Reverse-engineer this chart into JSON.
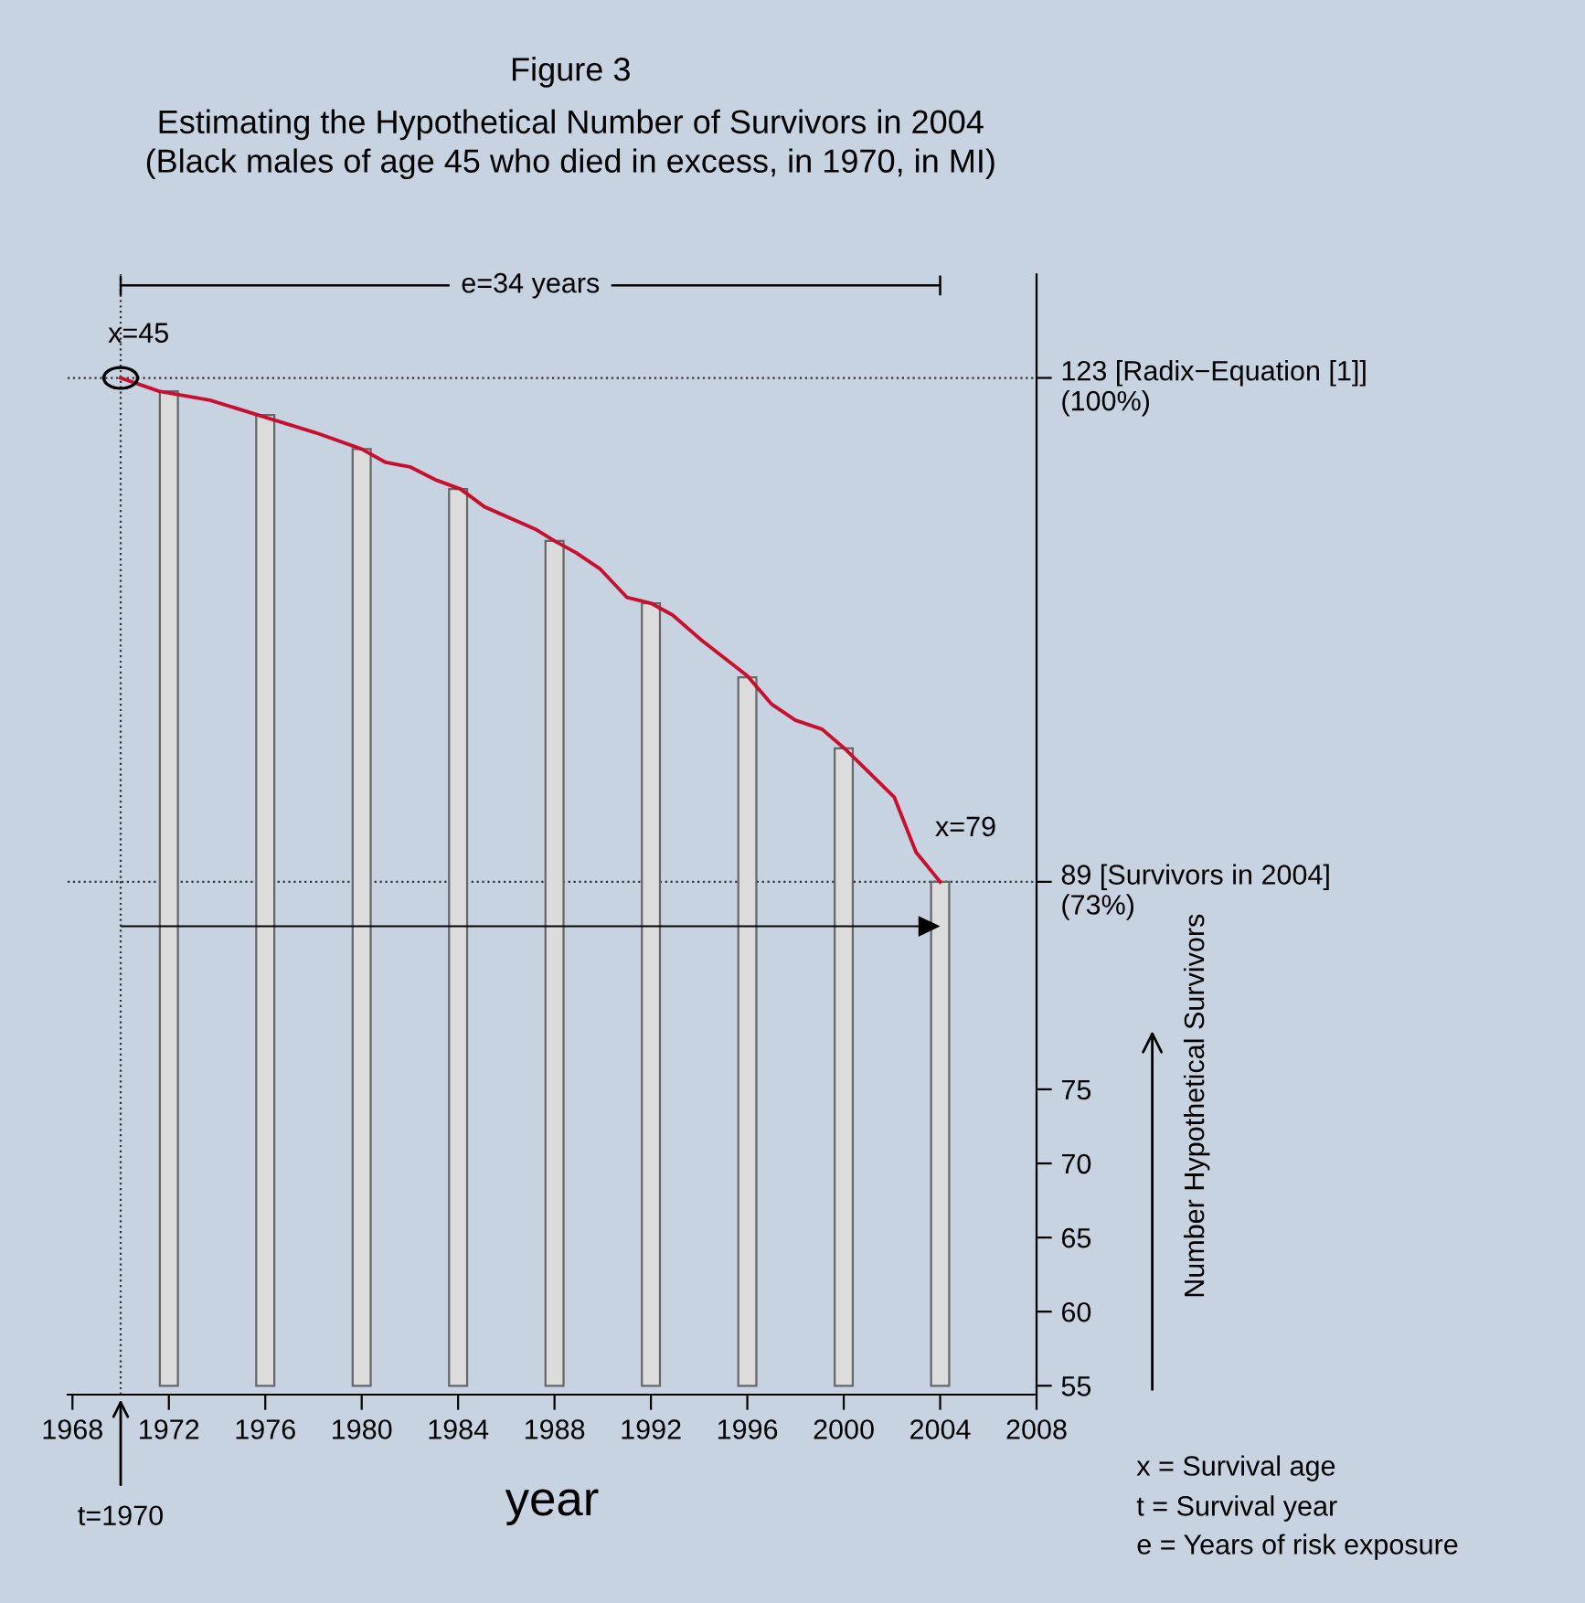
{
  "chart_data": {
    "type": "bar",
    "title": "Figure 3",
    "subtitle": "Estimating the Hypothetical Number of Survivors in 2004\n(Black males of age 45 who died in excess, in 1970, in MI)",
    "xlabel": "year",
    "ylabel": "Number Hypothetical Survivors",
    "series": [
      {
        "color": "#dcdcdc",
        "x": [
          1972,
          1976,
          1980,
          1984,
          1988,
          1992,
          1996,
          2000,
          2004
        ],
        "base": [
          55,
          55,
          55,
          55,
          55,
          55,
          55,
          55,
          55
        ],
        "values": [
          67.1,
          65.5,
          63.2,
          60.5,
          57.0,
          52.8,
          47.8,
          43.0,
          34
        ]
      },
      {
        "type": "line",
        "color": "#c8102e",
        "x": [
          1970,
          1971.6,
          1973.7,
          1975.7,
          1978.1,
          1980,
          1981,
          1982,
          1983.1,
          1984.1,
          1985.1,
          1987.2,
          1988,
          1988.9,
          1989.9,
          1991,
          1992,
          1992.9,
          1994.1,
          1996,
          1997,
          1998,
          1999.1,
          2000.1,
          2002.1,
          2003,
          2004
        ],
        "values": [
          123,
          122.1,
          121.5,
          120.5,
          119.3,
          118.2,
          117.3,
          117.0,
          116.1,
          115.5,
          114.3,
          112.8,
          112.0,
          111.2,
          110.1,
          108.2,
          107.8,
          107.0,
          105.3,
          102.9,
          101.0,
          99.9,
          99.3,
          97.9,
          94.7,
          91.0,
          89
        ]
      }
    ],
    "xlim": [
      1967.8,
      2008
    ],
    "xticks": [
      1968,
      1972,
      1976,
      1980,
      1984,
      1988,
      1992,
      1996,
      2000,
      2004,
      2008
    ],
    "ylim": [
      54.4,
      130
    ],
    "yticks": [
      55,
      60,
      65,
      70,
      75,
      {
        "value": 89,
        "label": "89 [Survivors in 2004]\n(73%)"
      },
      {
        "value": 123,
        "label": "123 [Radix−Equation [1]]\n(100%)"
      }
    ],
    "ref_lines": [
      {
        "axis": "y",
        "value": 123,
        "line_style": "dotted",
        "color": "#333333"
      },
      {
        "axis": "y",
        "value": 89,
        "line_style": "dotted",
        "color": "#333333"
      },
      {
        "axis": "x",
        "value": 1970,
        "line_style": "dotted",
        "color": "#333333"
      }
    ],
    "annotations": [
      {
        "text": "x=45",
        "x": 1970,
        "y": 123
      },
      {
        "text": "x=79",
        "x": 2004,
        "y": 89
      },
      "e=34 years",
      "t=1970",
      "x = Survival age",
      "t = Survival year",
      "e = Years of risk exposure"
    ],
    "grid": false
  }
}
